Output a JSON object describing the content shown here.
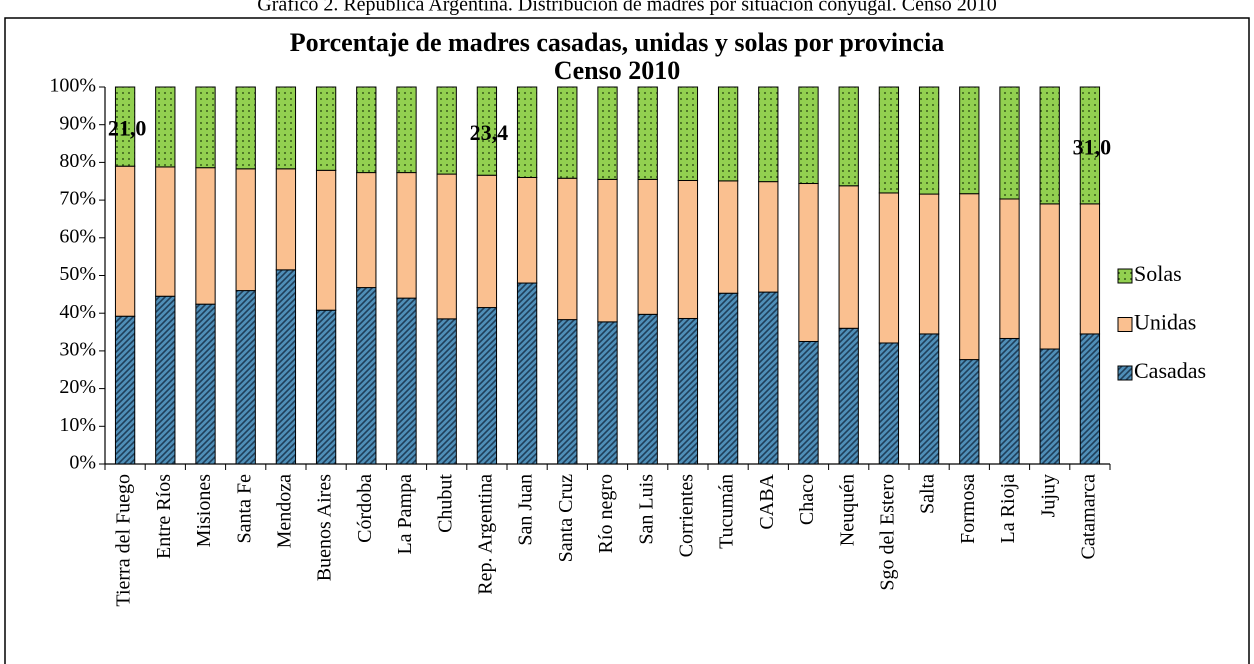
{
  "caption": "Gráfico 2. República Argentina. Distribución de madres por situación conyugal. Censo 2010",
  "chart_data": {
    "type": "stacked_bar",
    "title": "Porcentaje de madres casadas, unidas y solas por provincia",
    "subtitle": "Censo 2010",
    "categories": [
      "Tierra del Fuego",
      "Entre Ríos",
      "Misiones",
      "Santa Fe",
      "Mendoza",
      "Buenos Aires",
      "Córdoba",
      "La Pampa",
      "Chubut",
      "Rep. Argentina",
      "San Juan",
      "Santa Cruz",
      "Río negro",
      "San Luis",
      "Corrientes",
      "Tucumán",
      "CABA",
      "Chaco",
      "Neuquén",
      "Sgo del Estero",
      "Salta",
      "Formosa",
      "La Rioja",
      "Jujuy",
      "Catamarca"
    ],
    "series": [
      {
        "name": "Casadas",
        "color": "#4f8fb8",
        "values": [
          39.2,
          44.5,
          42.4,
          46.0,
          51.5,
          40.8,
          46.8,
          44.0,
          38.5,
          41.5,
          48.0,
          38.3,
          37.7,
          39.7,
          38.6,
          45.3,
          45.6,
          32.5,
          36.0,
          32.1,
          34.5,
          27.7,
          33.3,
          30.5,
          34.5
        ]
      },
      {
        "name": "Unidas",
        "color": "#fac090",
        "values": [
          39.8,
          34.3,
          36.2,
          32.3,
          26.8,
          37.1,
          30.5,
          33.3,
          38.4,
          35.1,
          28.0,
          37.5,
          37.8,
          35.8,
          36.6,
          29.8,
          29.3,
          41.9,
          37.8,
          39.8,
          37.1,
          44.0,
          37.0,
          38.5,
          34.5
        ]
      },
      {
        "name": "Solas",
        "color": "#92d050",
        "values": [
          21.0,
          21.2,
          21.4,
          21.7,
          21.7,
          22.1,
          22.7,
          22.7,
          23.1,
          23.4,
          24.0,
          24.2,
          24.5,
          24.5,
          24.8,
          24.9,
          25.1,
          25.6,
          26.2,
          28.1,
          28.4,
          28.3,
          29.7,
          31.0,
          31.0
        ],
        "value_labels": [
          "21,0",
          null,
          null,
          null,
          null,
          null,
          null,
          null,
          null,
          "23,4",
          null,
          null,
          null,
          null,
          null,
          null,
          null,
          null,
          null,
          null,
          null,
          null,
          null,
          null,
          "31,0"
        ]
      }
    ],
    "ylim": [
      0,
      100
    ],
    "yticks": [
      {
        "value": 0,
        "label": "0%"
      },
      {
        "value": 10,
        "label": "10%"
      },
      {
        "value": 20,
        "label": "20%"
      },
      {
        "value": 30,
        "label": "30%"
      },
      {
        "value": 40,
        "label": "40%"
      },
      {
        "value": 50,
        "label": "50%"
      },
      {
        "value": 60,
        "label": "60%"
      },
      {
        "value": 70,
        "label": "70%"
      },
      {
        "value": 80,
        "label": "80%"
      },
      {
        "value": 90,
        "label": "90%"
      },
      {
        "value": 100,
        "label": "100%"
      }
    ],
    "legend": "right"
  }
}
